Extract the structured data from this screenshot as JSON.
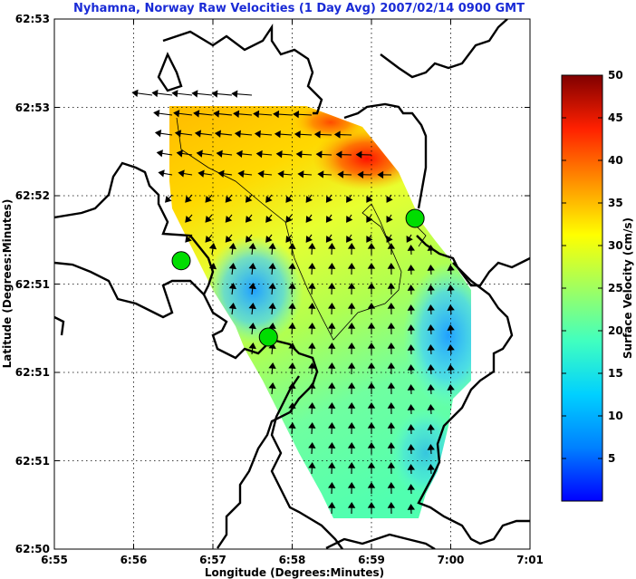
{
  "chart_data": {
    "type": "heatmap",
    "title": "Nyhamna, Norway Raw Velocities (1 Day Avg) 2007/02/14 0900 GMT",
    "xlabel": "Longitude (Degrees:Minutes)",
    "ylabel": "Latitude (Degrees:Minutes)",
    "x_ticks": [
      "6:55",
      "6:56",
      "6:57",
      "6:58",
      "6:59",
      "7:00",
      "7:01"
    ],
    "y_ticks": [
      "62:53",
      "62:53",
      "62:52",
      "62:51",
      "62:51",
      "62:51",
      "62:50"
    ],
    "xlim": [
      0,
      6
    ],
    "ylim": [
      0,
      5
    ],
    "grid": true,
    "colorbar": {
      "label": "Surface Velocity (cm/s)",
      "min": 0,
      "max": 50,
      "ticks": [
        5,
        10,
        15,
        20,
        25,
        30,
        35,
        40,
        45,
        50
      ],
      "colormap": "jet"
    },
    "stations": [
      {
        "x": 1.6,
        "y": 2.72,
        "color": "#00dd00"
      },
      {
        "x": 2.7,
        "y": 2.0,
        "color": "#00dd00"
      },
      {
        "x": 4.55,
        "y": 3.12,
        "color": "#00dd00"
      }
    ],
    "vectors_note": ""
  }
}
